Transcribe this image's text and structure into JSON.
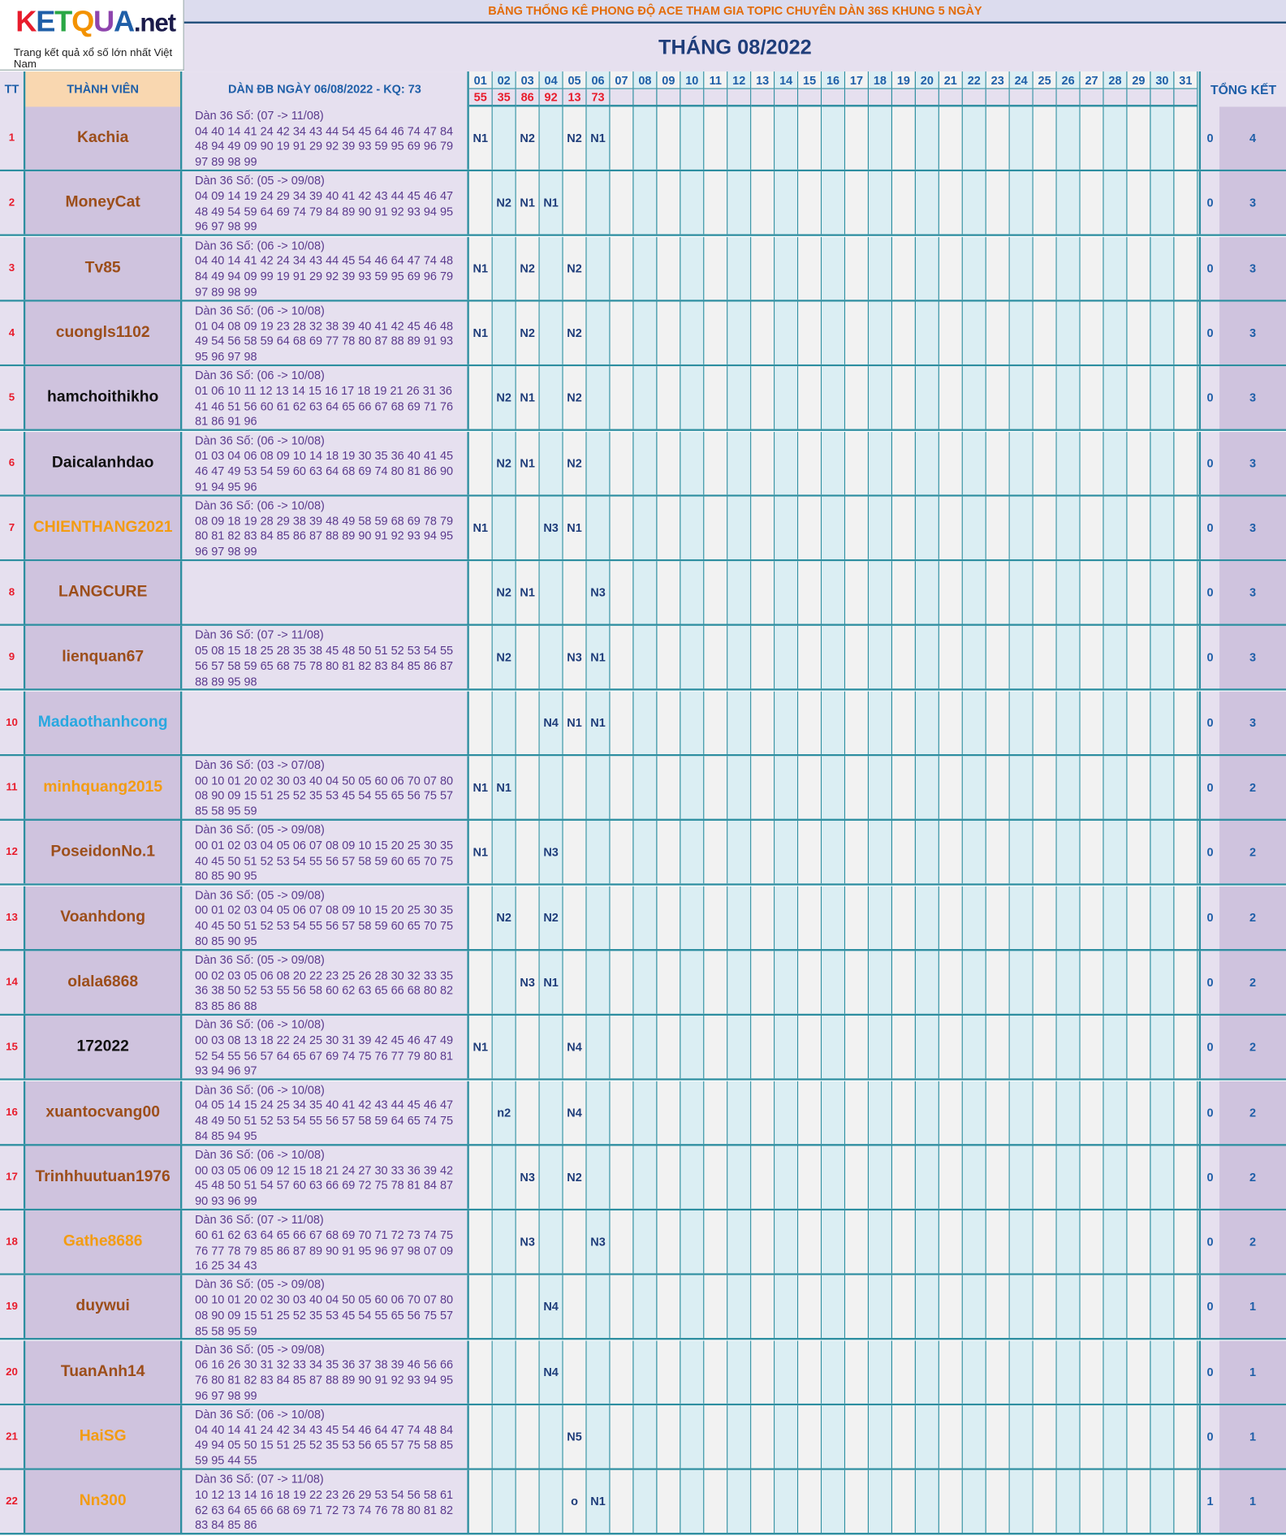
{
  "logo": {
    "letters": [
      "K",
      "E",
      "T",
      "Q",
      "U",
      "A"
    ],
    "letter_colors": [
      "#e81c2c",
      "#1f5fa8",
      "#29a744",
      "#f39200",
      "#8e44ad",
      "#1f5fa8"
    ],
    "suffix": ".net",
    "tagline": "Trang kết quả xổ số lớn nhất Việt Nam"
  },
  "banner": "BẢNG THỐNG KÊ PHONG ĐỘ ACE THAM GIA TOPIC CHUYÊN DÀN 36S KHUNG 5 NGÀY",
  "month_title": "THÁNG 08/2022",
  "headers": {
    "tt": "TT",
    "member": "THÀNH VIÊN",
    "dan": "DÀN ĐB NGÀY 06/08/2022 - KQ: 73",
    "total": "TỔNG KẾT"
  },
  "days": [
    "01",
    "02",
    "03",
    "04",
    "05",
    "06",
    "07",
    "08",
    "09",
    "10",
    "11",
    "12",
    "13",
    "14",
    "15",
    "16",
    "17",
    "18",
    "19",
    "20",
    "21",
    "22",
    "23",
    "24",
    "25",
    "26",
    "27",
    "28",
    "29",
    "30",
    "31"
  ],
  "results": [
    "55",
    "35",
    "86",
    "92",
    "13",
    "73"
  ],
  "colors": {
    "brown": "#9c4e1a",
    "black": "#111111",
    "orange": "#f39c12",
    "blue": "#29a8e0",
    "day_even": "#f2f2f2",
    "day_odd": "#dbeef3"
  },
  "rows": [
    {
      "tt": "1",
      "name": "Kachia",
      "color": "brown",
      "lines": [
        "Dàn 36 Số: (07 -> 11/08)",
        "04 40 14 41 24 42 34 43 44 54 45 64 46 74 47 84",
        "48 94 49 09 90 19 91 29 92 39 93 59 95 69 96 79",
        "97 89 98 99"
      ],
      "marks": {
        "01": "N1",
        "03": "N2",
        "05": "N2",
        "06": "N1"
      },
      "hit": "0",
      "total": "4"
    },
    {
      "tt": "2",
      "name": "MoneyCat",
      "color": "brown",
      "lines": [
        "Dàn 36 Số: (05 -> 09/08)",
        "04 09 14 19 24 29 34 39 40 41 42 43 44 45 46 47",
        "48 49 54 59 64 69 74 79 84 89 90 91 92 93 94 95",
        "96 97 98 99"
      ],
      "marks": {
        "02": "N2",
        "03": "N1",
        "04": "N1"
      },
      "hit": "0",
      "total": "3"
    },
    {
      "tt": "3",
      "name": "Tv85",
      "color": "brown",
      "lines": [
        "Dàn 36 Số: (06 -> 10/08)",
        "04 40 14 41 42 24 34 43 44 45 54 46 64 47 74 48",
        "84 49 94 09 99 19 91 29 92 39 93 59 95 69 96 79",
        "97 89 98 99"
      ],
      "marks": {
        "01": "N1",
        "03": "N2",
        "05": "N2"
      },
      "hit": "0",
      "total": "3"
    },
    {
      "tt": "4",
      "name": "cuongls1102",
      "color": "brown",
      "lines": [
        "Dàn 36 Số: (06 -> 10/08)",
        "01 04 08 09 19 23 28 32 38 39 40 41 42 45 46 48",
        "49 54 56 58 59 64 68 69 77 78 80 87 88 89 91 93",
        "95 96 97 98"
      ],
      "marks": {
        "01": "N1",
        "03": "N2",
        "05": "N2"
      },
      "hit": "0",
      "total": "3"
    },
    {
      "tt": "5",
      "name": "hamchoithikho",
      "color": "black",
      "lines": [
        "Dàn 36 Số: (06 -> 10/08)",
        "01 06 10 11 12 13 14 15 16 17 18 19 21 26 31 36",
        "41 46 51 56 60 61 62 63 64 65 66 67 68 69 71 76",
        "81 86 91 96"
      ],
      "marks": {
        "02": "N2",
        "03": "N1",
        "05": "N2"
      },
      "hit": "0",
      "total": "3"
    },
    {
      "tt": "6",
      "name": "Daicalanhdao",
      "color": "black",
      "lines": [
        "Dàn 36 Số: (06 -> 10/08)",
        "01 03 04 06 08 09 10 14 18 19 30 35 36 40 41 45",
        "46 47 49 53 54 59 60 63 64 68 69 74 80 81 86 90",
        "91 94 95 96"
      ],
      "marks": {
        "02": "N2",
        "03": "N1",
        "05": "N2"
      },
      "hit": "0",
      "total": "3"
    },
    {
      "tt": "7",
      "name": "CHIENTHANG2021",
      "color": "orange",
      "lines": [
        "Dàn 36 Số: (06 -> 10/08)",
        "08 09 18 19 28 29 38 39 48 49 58 59 68 69 78 79",
        "80 81 82 83 84 85 86 87 88 89 90 91 92 93 94 95",
        "96 97 98 99"
      ],
      "marks": {
        "01": "N1",
        "04": "N3",
        "05": "N1"
      },
      "hit": "0",
      "total": "3"
    },
    {
      "tt": "8",
      "name": "LANGCURE",
      "color": "brown",
      "lines": [],
      "marks": {
        "02": "N2",
        "03": "N1",
        "06": "N3"
      },
      "hit": "0",
      "total": "3"
    },
    {
      "tt": "9",
      "name": "lienquan67",
      "color": "brown",
      "lines": [
        "Dàn 36 Số: (07 -> 11/08)",
        "05 08 15 18 25 28 35 38 45 48 50 51 52 53 54 55",
        "56 57 58 59 65 68 75 78 80 81 82 83 84 85 86 87",
        "88 89 95 98"
      ],
      "marks": {
        "02": "N2",
        "05": "N3",
        "06": "N1"
      },
      "hit": "0",
      "total": "3"
    },
    {
      "tt": "10",
      "name": "Madaothanhcong",
      "color": "blue",
      "lines": [],
      "marks": {
        "04": "N4",
        "05": "N1",
        "06": "N1"
      },
      "hit": "0",
      "total": "3"
    },
    {
      "tt": "11",
      "name": "minhquang2015",
      "color": "orange",
      "lines": [
        "Dàn 36 Số: (03 -> 07/08)",
        "00 10 01 20 02 30 03 40 04 50 05 60 06 70 07 80",
        "08 90 09 15 51 25 52 35 53 45 54 55 65 56 75 57",
        "85 58 95 59"
      ],
      "marks": {
        "01": "N1",
        "02": "N1"
      },
      "hit": "0",
      "total": "2"
    },
    {
      "tt": "12",
      "name": "PoseidonNo.1",
      "color": "brown",
      "lines": [
        "Dàn 36 Số: (05 -> 09/08)",
        "00 01 02 03 04 05 06 07 08 09 10 15 20 25 30 35",
        "40 45 50 51 52 53 54 55 56 57 58 59 60 65 70 75",
        "80 85 90 95"
      ],
      "marks": {
        "01": "N1",
        "04": "N3"
      },
      "hit": "0",
      "total": "2"
    },
    {
      "tt": "13",
      "name": "Voanhdong",
      "color": "brown",
      "lines": [
        "Dàn 36 Số: (05 -> 09/08)",
        "00 01 02 03 04 05 06 07 08 09 10 15 20 25 30 35",
        "40 45 50 51 52 53 54 55 56 57 58 59 60 65 70 75",
        "80 85 90 95"
      ],
      "marks": {
        "02": "N2",
        "04": "N2"
      },
      "hit": "0",
      "total": "2"
    },
    {
      "tt": "14",
      "name": "olala6868",
      "color": "brown",
      "lines": [
        "Dàn 36 Số: (05 -> 09/08)",
        "00 02 03 05 06 08 20 22 23 25 26 28 30 32 33 35",
        "36 38 50 52 53 55 56 58 60 62 63 65 66 68 80 82",
        "83 85 86 88"
      ],
      "marks": {
        "03": "N3",
        "04": "N1"
      },
      "hit": "0",
      "total": "2"
    },
    {
      "tt": "15",
      "name": "172022",
      "color": "black",
      "lines": [
        "Dàn 36 Số: (06 -> 10/08)",
        "00 03 08 13 18 22 24 25 30 31 39 42 45 46 47 49",
        "52 54 55 56 57 64 65 67 69 74 75 76 77 79 80 81",
        "93 94 96 97"
      ],
      "marks": {
        "01": "N1",
        "05": "N4"
      },
      "hit": "0",
      "total": "2"
    },
    {
      "tt": "16",
      "name": "xuantocvang00",
      "color": "brown",
      "lines": [
        "Dàn 36 Số: (06 -> 10/08)",
        "04 05 14 15 24 25 34 35 40 41 42 43 44 45 46 47",
        "48 49 50 51 52 53 54 55 56 57 58 59 64 65 74 75",
        "84 85 94 95"
      ],
      "marks": {
        "02": "n2",
        "05": "N4"
      },
      "hit": "0",
      "total": "2"
    },
    {
      "tt": "17",
      "name": "Trinhhuutuan1976",
      "color": "brown",
      "lines": [
        "Dàn 36 Số: (06 -> 10/08)",
        "00 03 05 06 09 12 15 18 21 24 27 30 33 36 39 42",
        "45 48 50 51 54 57 60 63 66 69 72 75 78 81 84 87",
        "90 93 96 99"
      ],
      "marks": {
        "03": "N3",
        "05": "N2"
      },
      "hit": "0",
      "total": "2"
    },
    {
      "tt": "18",
      "name": "Gathe8686",
      "color": "orange",
      "lines": [
        "Dàn 36 Số: (07 -> 11/08)",
        "60 61 62 63 64 65 66 67 68 69 70 71 72 73 74 75",
        "76 77 78 79 85 86 87 89 90 91 95 96 97 98 07 09",
        "16 25 34 43"
      ],
      "marks": {
        "03": "N3",
        "06": "N3"
      },
      "hit": "0",
      "total": "2"
    },
    {
      "tt": "19",
      "name": "duywui",
      "color": "brown",
      "lines": [
        "Dàn 36 Số: (05 -> 09/08)",
        "00 10 01 20 02 30 03 40 04 50 05 60 06 70 07 80",
        "08 90 09 15 51 25 52 35 53 45 54 55 65 56 75 57",
        "85 58 95 59"
      ],
      "marks": {
        "04": "N4"
      },
      "hit": "0",
      "total": "1"
    },
    {
      "tt": "20",
      "name": "TuanAnh14",
      "color": "brown",
      "lines": [
        "Dàn 36 Số: (05 -> 09/08)",
        "06 16 26 30 31 32 33 34 35 36 37 38 39 46 56 66",
        "76 80 81 82 83 84 85 87 88 89 90 91 92 93 94 95",
        "96 97 98 99"
      ],
      "marks": {
        "04": "N4"
      },
      "hit": "0",
      "total": "1"
    },
    {
      "tt": "21",
      "name": "HaiSG",
      "color": "orange",
      "lines": [
        "Dàn 36 Số: (06 -> 10/08)",
        "04 40 14 41 24 42 34 43 45 54 46 64 47 74 48 84",
        "49 94 05 50 15 51 25 52 35 53 56 65 57 75 58 85",
        "59 95 44 55"
      ],
      "marks": {
        "05": "N5"
      },
      "hit": "0",
      "total": "1"
    },
    {
      "tt": "22",
      "name": "Nn300",
      "color": "orange",
      "lines": [
        "Dàn 36 Số: (07 -> 11/08)",
        "10 12 13 14 16 18 19 22 23 26 29 53 54 56 58 61",
        "62 63 64 65 66 68 69 71 72 73 74 76 78 80 81 82",
        "83 84 85 86"
      ],
      "marks": {
        "05": "o",
        "06": "N1"
      },
      "hit": "1",
      "total": "1"
    }
  ]
}
